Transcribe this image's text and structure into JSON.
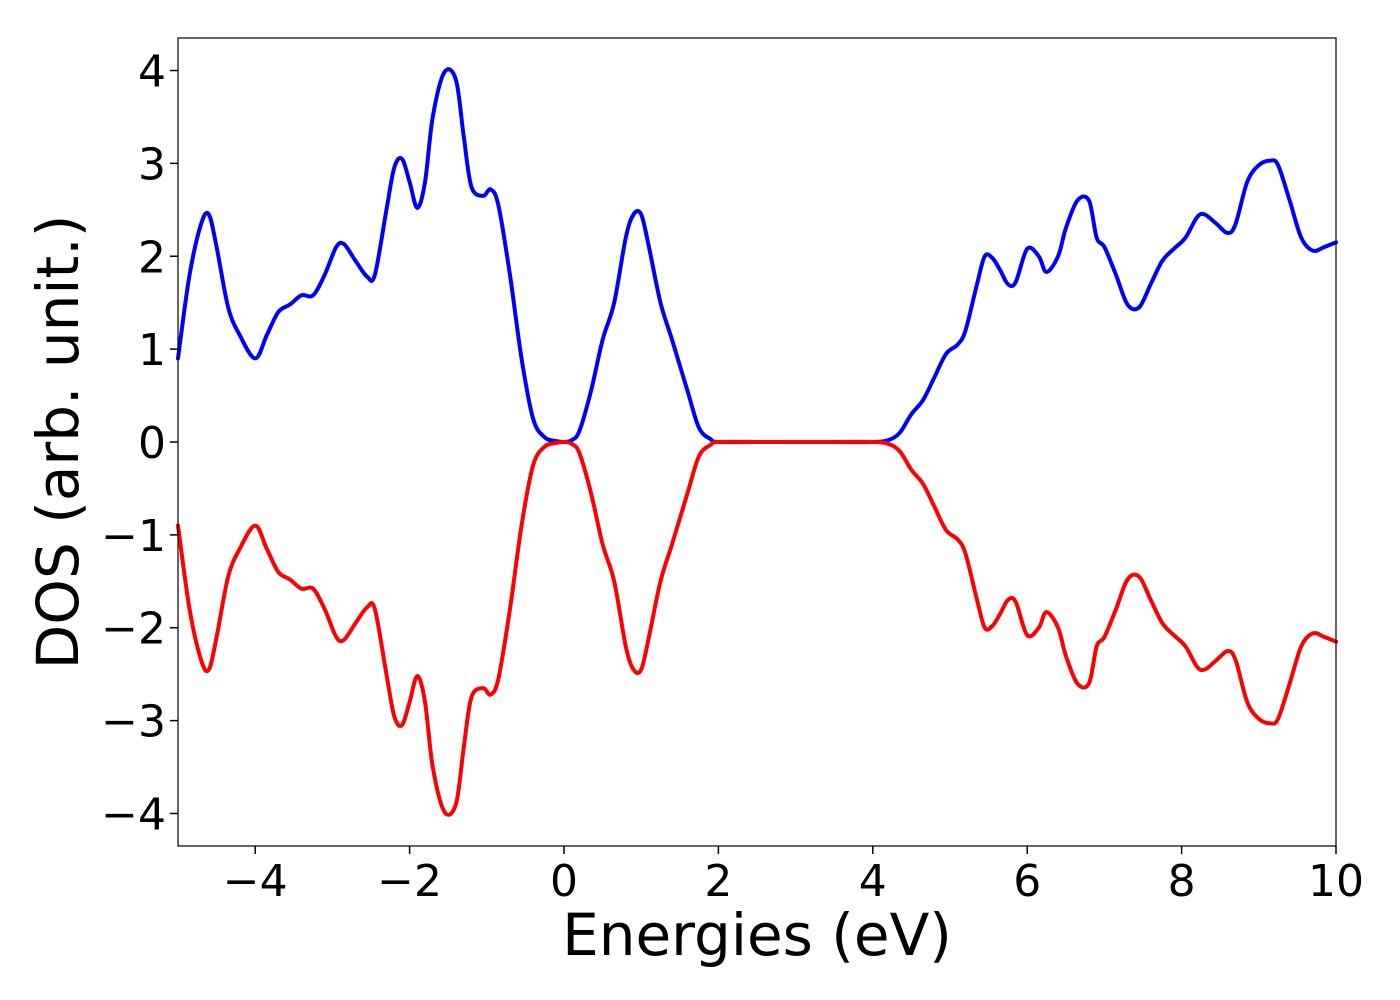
{
  "chart_data": {
    "type": "line",
    "xlabel": "Energies (eV)",
    "ylabel": "DOS (arb. unit.)",
    "xlim": [
      -5,
      10
    ],
    "ylim": [
      -4.35,
      4.35
    ],
    "xticks": [
      -4,
      -2,
      0,
      2,
      4,
      6,
      8,
      10
    ],
    "xtick_labels": [
      "−4",
      "−2",
      "0",
      "2",
      "4",
      "6",
      "8",
      "10"
    ],
    "yticks": [
      -4,
      -3,
      -2,
      -1,
      0,
      1,
      2,
      3,
      4
    ],
    "ytick_labels": [
      "−4",
      "−3",
      "−2",
      "−1",
      "0",
      "1",
      "2",
      "3",
      "4"
    ],
    "grid": false,
    "series": [
      {
        "color": "#0000ff",
        "x": [
          -5.0,
          -4.85,
          -4.7,
          -4.6,
          -4.5,
          -4.35,
          -4.2,
          -4.0,
          -3.85,
          -3.7,
          -3.55,
          -3.4,
          -3.25,
          -3.1,
          -2.95,
          -2.85,
          -2.7,
          -2.55,
          -2.45,
          -2.3,
          -2.2,
          -2.1,
          -2.0,
          -1.9,
          -1.8,
          -1.7,
          -1.55,
          -1.4,
          -1.3,
          -1.2,
          -1.05,
          -0.95,
          -0.85,
          -0.7,
          -0.55,
          -0.4,
          -0.25,
          -0.1,
          0.0,
          0.1,
          0.2,
          0.35,
          0.5,
          0.65,
          0.8,
          0.9,
          1.0,
          1.1,
          1.25,
          1.4,
          1.6,
          1.75,
          1.9,
          2.0,
          2.5,
          3.0,
          3.5,
          4.0,
          4.2,
          4.35,
          4.5,
          4.65,
          4.8,
          4.95,
          5.1,
          5.2,
          5.35,
          5.45,
          5.55,
          5.65,
          5.75,
          5.85,
          6.0,
          6.15,
          6.25,
          6.4,
          6.5,
          6.65,
          6.8,
          6.9,
          7.0,
          7.15,
          7.3,
          7.45,
          7.6,
          7.75,
          7.9,
          8.05,
          8.2,
          8.3,
          8.45,
          8.6,
          8.7,
          8.85,
          9.0,
          9.15,
          9.25,
          9.4,
          9.55,
          9.7,
          9.85,
          10.0
        ],
        "y": [
          0.9,
          1.8,
          2.35,
          2.45,
          2.1,
          1.45,
          1.15,
          0.9,
          1.15,
          1.4,
          1.48,
          1.58,
          1.58,
          1.8,
          2.1,
          2.13,
          1.95,
          1.78,
          1.8,
          2.5,
          2.95,
          3.05,
          2.8,
          2.52,
          2.8,
          3.5,
          3.98,
          3.9,
          3.3,
          2.75,
          2.65,
          2.72,
          2.55,
          1.8,
          0.9,
          0.25,
          0.05,
          0.01,
          0.0,
          0.02,
          0.12,
          0.55,
          1.1,
          1.5,
          2.2,
          2.45,
          2.45,
          2.1,
          1.5,
          1.1,
          0.55,
          0.15,
          0.03,
          0.0,
          0.0,
          0.0,
          0.0,
          0.0,
          0.02,
          0.1,
          0.3,
          0.45,
          0.7,
          0.95,
          1.05,
          1.2,
          1.7,
          2.0,
          1.98,
          1.85,
          1.7,
          1.72,
          2.08,
          2.0,
          1.83,
          2.0,
          2.3,
          2.6,
          2.6,
          2.2,
          2.1,
          1.8,
          1.48,
          1.45,
          1.7,
          1.95,
          2.08,
          2.2,
          2.42,
          2.45,
          2.35,
          2.25,
          2.35,
          2.8,
          2.98,
          3.03,
          2.98,
          2.6,
          2.2,
          2.06,
          2.1,
          2.15
        ]
      },
      {
        "color": "#ff0000",
        "x": [
          -5.0,
          -4.85,
          -4.7,
          -4.6,
          -4.5,
          -4.35,
          -4.2,
          -4.0,
          -3.85,
          -3.7,
          -3.55,
          -3.4,
          -3.25,
          -3.1,
          -2.95,
          -2.85,
          -2.7,
          -2.55,
          -2.45,
          -2.3,
          -2.2,
          -2.1,
          -2.0,
          -1.9,
          -1.8,
          -1.7,
          -1.55,
          -1.4,
          -1.3,
          -1.2,
          -1.05,
          -0.95,
          -0.85,
          -0.7,
          -0.55,
          -0.4,
          -0.25,
          -0.1,
          0.0,
          0.1,
          0.2,
          0.35,
          0.5,
          0.65,
          0.8,
          0.9,
          1.0,
          1.1,
          1.25,
          1.4,
          1.6,
          1.75,
          1.9,
          2.0,
          2.5,
          3.0,
          3.5,
          4.0,
          4.2,
          4.35,
          4.5,
          4.65,
          4.8,
          4.95,
          5.1,
          5.2,
          5.35,
          5.45,
          5.55,
          5.65,
          5.75,
          5.85,
          6.0,
          6.15,
          6.25,
          6.4,
          6.5,
          6.65,
          6.8,
          6.9,
          7.0,
          7.15,
          7.3,
          7.45,
          7.6,
          7.75,
          7.9,
          8.05,
          8.2,
          8.3,
          8.45,
          8.6,
          8.7,
          8.85,
          9.0,
          9.15,
          9.25,
          9.4,
          9.55,
          9.7,
          9.85,
          10.0
        ],
        "y": [
          -0.9,
          -1.8,
          -2.35,
          -2.45,
          -2.1,
          -1.45,
          -1.15,
          -0.9,
          -1.15,
          -1.4,
          -1.48,
          -1.58,
          -1.58,
          -1.8,
          -2.1,
          -2.13,
          -1.95,
          -1.78,
          -1.8,
          -2.5,
          -2.95,
          -3.05,
          -2.8,
          -2.52,
          -2.8,
          -3.5,
          -3.98,
          -3.9,
          -3.3,
          -2.75,
          -2.65,
          -2.72,
          -2.55,
          -1.8,
          -0.9,
          -0.25,
          -0.05,
          -0.01,
          0.0,
          -0.02,
          -0.12,
          -0.55,
          -1.1,
          -1.5,
          -2.2,
          -2.45,
          -2.45,
          -2.1,
          -1.5,
          -1.1,
          -0.55,
          -0.15,
          -0.03,
          0.0,
          0.0,
          0.0,
          0.0,
          0.0,
          -0.02,
          -0.1,
          -0.3,
          -0.45,
          -0.7,
          -0.95,
          -1.05,
          -1.2,
          -1.7,
          -2.0,
          -1.98,
          -1.85,
          -1.7,
          -1.72,
          -2.08,
          -2.0,
          -1.83,
          -2.0,
          -2.3,
          -2.6,
          -2.6,
          -2.2,
          -2.1,
          -1.8,
          -1.48,
          -1.45,
          -1.7,
          -1.95,
          -2.08,
          -2.2,
          -2.42,
          -2.45,
          -2.35,
          -2.25,
          -2.35,
          -2.8,
          -2.98,
          -3.03,
          -2.98,
          -2.6,
          -2.2,
          -2.06,
          -2.1,
          -2.15
        ]
      }
    ]
  }
}
